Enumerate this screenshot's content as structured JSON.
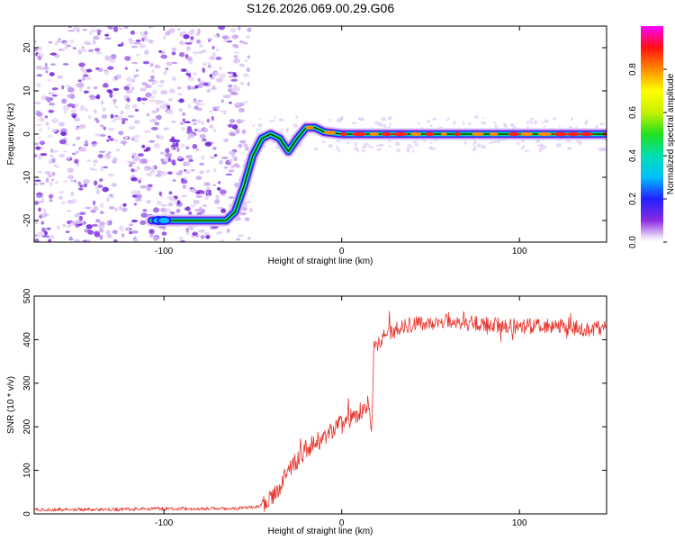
{
  "chart_data": [
    {
      "type": "heatmap",
      "title": "S126.2026.069.00.29.G06",
      "xlabel": "Height of straight line (km)",
      "ylabel": "Frequency (Hz)",
      "xlim": [
        -173,
        149
      ],
      "ylim": [
        -25,
        25
      ],
      "xticks": [
        -100,
        0,
        100
      ],
      "yticks": [
        -20,
        -10,
        0,
        10,
        20
      ],
      "noise_region_x": [
        -173,
        -52
      ],
      "ridge": {
        "x": [
          -107,
          -100,
          -85,
          -65,
          -60,
          -55,
          -50,
          -45,
          -40,
          -35,
          -30,
          -25,
          -20,
          -15,
          -10,
          0,
          20,
          40,
          60,
          80,
          100,
          120,
          149
        ],
        "y": [
          -20,
          -20,
          -20,
          -20,
          -18,
          -12,
          -5,
          -1,
          0,
          -1,
          -4,
          -1,
          1.5,
          1.5,
          0.5,
          0,
          0,
          0,
          0,
          0,
          0,
          0,
          0
        ]
      },
      "colorbar": {
        "label": "Normalized spectral amplitude",
        "range": [
          0,
          1
        ],
        "ticks": [
          "0.0",
          "0.2",
          "0.4",
          "0.6",
          "0.8"
        ]
      }
    },
    {
      "type": "line",
      "xlabel": "Height of straight line (km)",
      "ylabel": "SNR (10 * v/v)",
      "xlim": [
        -173,
        149
      ],
      "ylim": [
        0,
        500
      ],
      "xticks": [
        -100,
        0,
        100
      ],
      "yticks": [
        0,
        100,
        200,
        300,
        400,
        500
      ],
      "series": [
        {
          "name": "SNR",
          "color": "#e8332c",
          "x": [
            -173,
            -140,
            -100,
            -60,
            -45,
            -38,
            -30,
            -25,
            -20,
            -15,
            -10,
            -5,
            0,
            5,
            10,
            15,
            17,
            18,
            20,
            25,
            30,
            40,
            50,
            60,
            70,
            80,
            90,
            100,
            110,
            120,
            130,
            140,
            149
          ],
          "y": [
            10,
            10,
            12,
            12,
            18,
            40,
            100,
            120,
            150,
            160,
            175,
            195,
            205,
            220,
            235,
            250,
            195,
            380,
            390,
            410,
            425,
            435,
            440,
            445,
            438,
            435,
            432,
            430,
            432,
            430,
            428,
            425,
            425
          ]
        }
      ]
    }
  ]
}
